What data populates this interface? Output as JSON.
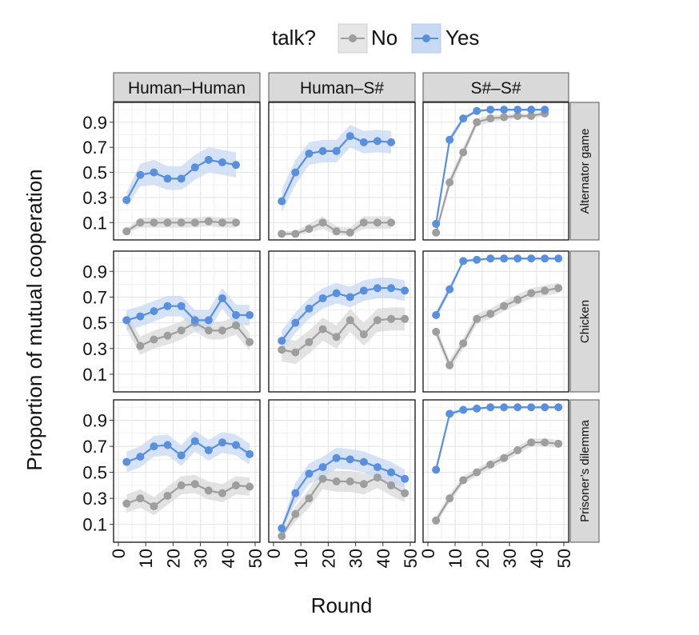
{
  "chart_data": {
    "type": "line",
    "legend": {
      "title": "talk?",
      "placement": "top",
      "entries": [
        {
          "label": "No",
          "color": "#9E9E9E",
          "band": "#DADADA"
        },
        {
          "label": "Yes",
          "color": "#5A8FDB",
          "band": "#C8D9F3"
        }
      ]
    },
    "xlabel": "Round",
    "ylabel": "Proportion of mutual cooperation",
    "xticks": [
      "0",
      "10",
      "20",
      "30",
      "40",
      "50"
    ],
    "yticks": [
      "0.1",
      "0.3",
      "0.5",
      "0.7",
      "0.9"
    ],
    "xlim": [
      0,
      50
    ],
    "ylim": [
      0.0,
      1.02
    ],
    "grid": true,
    "column_labels": [
      "Human–Human",
      "Human–S#",
      "S#–S#"
    ],
    "row_labels": [
      "Alternator game",
      "Chicken",
      "Prisoner’s dilemma"
    ],
    "x": [
      3,
      8,
      13,
      18,
      23,
      28,
      33,
      38,
      43,
      48
    ],
    "panels": [
      [
        {
          "series": [
            {
              "name": "No",
              "values": [
                0.03,
                0.1,
                0.1,
                0.1,
                0.1,
                0.1,
                0.11,
                0.1,
                0.1,
                null
              ],
              "lower": [
                0.02,
                0.06,
                0.06,
                0.06,
                0.06,
                0.06,
                0.07,
                0.06,
                0.06,
                null
              ],
              "upper": [
                0.05,
                0.14,
                0.14,
                0.14,
                0.14,
                0.14,
                0.15,
                0.14,
                0.14,
                null
              ]
            },
            {
              "name": "Yes",
              "values": [
                0.28,
                0.48,
                0.5,
                0.45,
                0.45,
                0.54,
                0.6,
                0.58,
                0.56,
                null
              ],
              "lower": [
                0.22,
                0.39,
                0.4,
                0.36,
                0.36,
                0.44,
                0.5,
                0.48,
                0.46,
                null
              ],
              "upper": [
                0.34,
                0.57,
                0.6,
                0.55,
                0.55,
                0.64,
                0.7,
                0.68,
                0.66,
                null
              ]
            }
          ]
        },
        {
          "series": [
            {
              "name": "No",
              "values": [
                0.01,
                0.01,
                0.05,
                0.1,
                0.03,
                0.02,
                0.1,
                0.1,
                0.1,
                null
              ],
              "lower": [
                0.0,
                0.0,
                0.02,
                0.05,
                0.0,
                0.0,
                0.05,
                0.05,
                0.05,
                null
              ],
              "upper": [
                0.03,
                0.03,
                0.09,
                0.15,
                0.07,
                0.06,
                0.15,
                0.15,
                0.15,
                null
              ]
            },
            {
              "name": "Yes",
              "values": [
                0.27,
                0.5,
                0.65,
                0.67,
                0.67,
                0.79,
                0.74,
                0.75,
                0.74,
                null
              ],
              "lower": [
                0.18,
                0.4,
                0.56,
                0.58,
                0.58,
                0.7,
                0.65,
                0.66,
                0.65,
                null
              ],
              "upper": [
                0.36,
                0.6,
                0.74,
                0.76,
                0.76,
                0.88,
                0.83,
                0.84,
                0.83,
                null
              ]
            }
          ]
        },
        {
          "series": [
            {
              "name": "No",
              "values": [
                0.02,
                0.42,
                0.66,
                0.9,
                0.93,
                0.94,
                0.95,
                0.95,
                0.97,
                null
              ],
              "lower": [
                0.01,
                0.38,
                0.62,
                0.87,
                0.9,
                0.92,
                0.93,
                0.93,
                0.95,
                null
              ],
              "upper": [
                0.04,
                0.46,
                0.7,
                0.93,
                0.96,
                0.96,
                0.97,
                0.97,
                0.99,
                null
              ]
            },
            {
              "name": "Yes",
              "values": [
                0.09,
                0.76,
                0.93,
                0.99,
                1.0,
                1.0,
                1.0,
                1.0,
                1.0,
                null
              ],
              "lower": [
                0.07,
                0.73,
                0.91,
                0.98,
                0.99,
                0.99,
                0.99,
                0.99,
                0.99,
                null
              ],
              "upper": [
                0.11,
                0.79,
                0.95,
                1.0,
                1.0,
                1.0,
                1.0,
                1.0,
                1.0,
                null
              ]
            }
          ]
        }
      ],
      [
        {
          "series": [
            {
              "name": "No",
              "values": [
                0.52,
                0.32,
                0.37,
                0.4,
                0.44,
                0.5,
                0.44,
                0.44,
                0.48,
                0.35
              ],
              "lower": [
                0.45,
                0.25,
                0.3,
                0.33,
                0.37,
                0.43,
                0.37,
                0.37,
                0.41,
                0.28
              ],
              "upper": [
                0.59,
                0.39,
                0.44,
                0.47,
                0.51,
                0.57,
                0.51,
                0.51,
                0.55,
                0.42
              ]
            },
            {
              "name": "Yes",
              "values": [
                0.52,
                0.55,
                0.59,
                0.63,
                0.63,
                0.52,
                0.52,
                0.69,
                0.56,
                0.56
              ],
              "lower": [
                0.44,
                0.47,
                0.51,
                0.55,
                0.55,
                0.44,
                0.44,
                0.61,
                0.48,
                0.48
              ],
              "upper": [
                0.6,
                0.63,
                0.67,
                0.71,
                0.71,
                0.6,
                0.6,
                0.77,
                0.64,
                0.64
              ]
            }
          ]
        },
        {
          "series": [
            {
              "name": "No",
              "values": [
                0.29,
                0.27,
                0.35,
                0.45,
                0.39,
                0.52,
                0.41,
                0.52,
                0.53,
                0.53
              ],
              "lower": [
                0.2,
                0.18,
                0.26,
                0.36,
                0.3,
                0.43,
                0.32,
                0.43,
                0.44,
                0.44
              ],
              "upper": [
                0.38,
                0.36,
                0.44,
                0.54,
                0.48,
                0.61,
                0.5,
                0.61,
                0.62,
                0.62
              ]
            },
            {
              "name": "Yes",
              "values": [
                0.36,
                0.5,
                0.61,
                0.69,
                0.73,
                0.7,
                0.75,
                0.77,
                0.77,
                0.75
              ],
              "lower": [
                0.28,
                0.42,
                0.53,
                0.61,
                0.65,
                0.62,
                0.67,
                0.69,
                0.69,
                0.67
              ],
              "upper": [
                0.44,
                0.58,
                0.69,
                0.77,
                0.81,
                0.78,
                0.83,
                0.85,
                0.85,
                0.83
              ]
            }
          ]
        },
        {
          "series": [
            {
              "name": "No",
              "values": [
                0.43,
                0.17,
                0.34,
                0.53,
                0.57,
                0.63,
                0.68,
                0.73,
                0.75,
                0.77
              ],
              "lower": [
                0.39,
                0.13,
                0.3,
                0.49,
                0.53,
                0.59,
                0.64,
                0.69,
                0.71,
                0.73
              ],
              "upper": [
                0.47,
                0.21,
                0.38,
                0.57,
                0.61,
                0.67,
                0.72,
                0.77,
                0.79,
                0.81
              ]
            },
            {
              "name": "Yes",
              "values": [
                0.56,
                0.76,
                0.98,
                0.99,
                1.0,
                1.0,
                1.0,
                1.0,
                1.0,
                1.0
              ],
              "lower": [
                0.53,
                0.73,
                0.97,
                0.98,
                0.99,
                0.99,
                0.99,
                0.99,
                0.99,
                0.99
              ],
              "upper": [
                0.59,
                0.79,
                0.99,
                1.0,
                1.0,
                1.0,
                1.0,
                1.0,
                1.0,
                1.0
              ]
            }
          ]
        }
      ],
      [
        {
          "series": [
            {
              "name": "No",
              "values": [
                0.26,
                0.3,
                0.24,
                0.32,
                0.4,
                0.41,
                0.36,
                0.34,
                0.4,
                0.39
              ],
              "lower": [
                0.19,
                0.23,
                0.17,
                0.25,
                0.33,
                0.34,
                0.29,
                0.27,
                0.33,
                0.32
              ],
              "upper": [
                0.33,
                0.37,
                0.31,
                0.39,
                0.47,
                0.48,
                0.43,
                0.41,
                0.47,
                0.46
              ]
            },
            {
              "name": "Yes",
              "values": [
                0.58,
                0.62,
                0.7,
                0.71,
                0.63,
                0.74,
                0.67,
                0.73,
                0.71,
                0.64
              ],
              "lower": [
                0.5,
                0.54,
                0.62,
                0.63,
                0.55,
                0.66,
                0.59,
                0.65,
                0.63,
                0.56
              ],
              "upper": [
                0.66,
                0.7,
                0.78,
                0.79,
                0.71,
                0.82,
                0.75,
                0.81,
                0.79,
                0.72
              ]
            }
          ]
        },
        {
          "series": [
            {
              "name": "No",
              "values": [
                0.01,
                0.18,
                0.3,
                0.45,
                0.43,
                0.43,
                0.41,
                0.46,
                0.4,
                0.34
              ],
              "lower": [
                0.0,
                0.12,
                0.23,
                0.37,
                0.35,
                0.35,
                0.33,
                0.38,
                0.32,
                0.27
              ],
              "upper": [
                0.03,
                0.24,
                0.37,
                0.53,
                0.51,
                0.51,
                0.49,
                0.54,
                0.48,
                0.41
              ]
            },
            {
              "name": "Yes",
              "values": [
                0.07,
                0.34,
                0.49,
                0.54,
                0.61,
                0.6,
                0.58,
                0.54,
                0.5,
                0.45
              ],
              "lower": [
                0.04,
                0.26,
                0.41,
                0.46,
                0.53,
                0.52,
                0.5,
                0.46,
                0.42,
                0.38
              ],
              "upper": [
                0.1,
                0.42,
                0.57,
                0.62,
                0.69,
                0.68,
                0.66,
                0.62,
                0.58,
                0.52
              ]
            }
          ]
        },
        {
          "series": [
            {
              "name": "No",
              "values": [
                0.13,
                0.3,
                0.44,
                0.5,
                0.56,
                0.61,
                0.67,
                0.73,
                0.73,
                0.72
              ],
              "lower": [
                0.1,
                0.27,
                0.41,
                0.47,
                0.53,
                0.58,
                0.64,
                0.7,
                0.7,
                0.69
              ],
              "upper": [
                0.16,
                0.33,
                0.47,
                0.53,
                0.59,
                0.64,
                0.7,
                0.76,
                0.76,
                0.75
              ]
            },
            {
              "name": "Yes",
              "values": [
                0.52,
                0.95,
                0.98,
                0.99,
                1.0,
                1.0,
                1.0,
                1.0,
                1.0,
                1.0
              ],
              "lower": [
                0.49,
                0.93,
                0.97,
                0.98,
                0.99,
                0.99,
                0.99,
                0.99,
                0.99,
                0.99
              ],
              "upper": [
                0.55,
                0.97,
                0.99,
                1.0,
                1.0,
                1.0,
                1.0,
                1.0,
                1.0,
                1.0
              ]
            }
          ]
        }
      ]
    ]
  }
}
